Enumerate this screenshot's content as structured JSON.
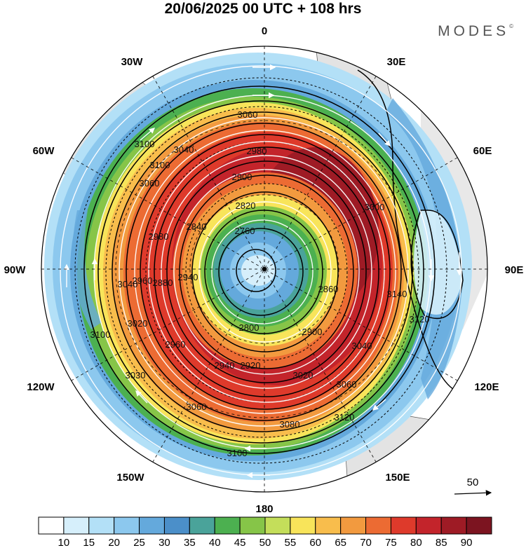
{
  "title": "20/06/2025  00 UTC  + 108 hrs",
  "brand": "MODES",
  "brand_mark": "©",
  "longitudes": {
    "top": "0",
    "top_right": "30E",
    "right_upper": "60E",
    "right": "90E",
    "right_lower": "120E",
    "bottom_right": "150E",
    "bottom": "180",
    "bottom_left": "150W",
    "left_lower": "120W",
    "left": "90W",
    "left_upper": "60W",
    "top_left": "30W"
  },
  "contour_labels": [
    "3060",
    "3100",
    "3040",
    "2980",
    "2900",
    "2820",
    "2760",
    "2840",
    "2980",
    "3060",
    "3040",
    "2960",
    "2880",
    "2940",
    "2800",
    "2860",
    "2900",
    "3040",
    "3020",
    "2960",
    "2940",
    "2920",
    "3020",
    "3060",
    "3000",
    "3080",
    "3100",
    "3100",
    "3100",
    "3120",
    "3140",
    "3120",
    "3030",
    "3060"
  ],
  "vector_reference": {
    "label": "50"
  },
  "colorbar": {
    "labels": [
      "10",
      "15",
      "20",
      "25",
      "30",
      "35",
      "40",
      "45",
      "50",
      "55",
      "60",
      "65",
      "70",
      "75",
      "80",
      "85",
      "90"
    ],
    "colors": [
      "#ffffff",
      "#d6effb",
      "#b3e0f7",
      "#8cc8ee",
      "#64a9dc",
      "#4b8fc9",
      "#4aa39a",
      "#4cb050",
      "#86c548",
      "#c4de5a",
      "#f8e45a",
      "#f8bd4c",
      "#f29a3f",
      "#ec6b33",
      "#de3a2b",
      "#c3242b",
      "#9e1b25",
      "#7c1420"
    ]
  }
}
